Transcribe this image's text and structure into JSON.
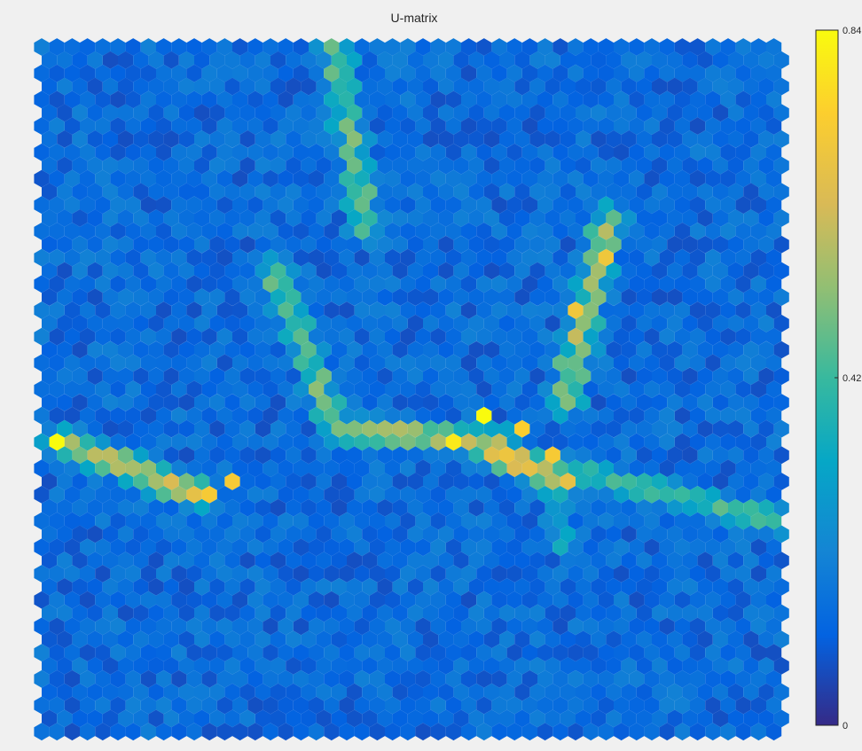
{
  "chart_data": {
    "type": "heatmap",
    "subtype": "hexagonal-som-u-matrix",
    "title": "U-matrix",
    "grid": {
      "cols": 49,
      "rows": 53
    },
    "value_range": [
      0,
      0.84
    ],
    "colorbar": {
      "orientation": "vertical",
      "placement": "right",
      "colormap": "parula",
      "ticks": [
        "0",
        "0.42",
        "0.84"
      ],
      "tick_values": [
        0,
        0.42,
        0.84
      ]
    },
    "high_ridges": [
      {
        "from": [
          19,
          0
        ],
        "to": [
          21,
          14
        ],
        "peak": 0.5
      },
      {
        "from": [
          15,
          17
        ],
        "to": [
          19,
          29
        ],
        "peak": 0.5
      },
      {
        "from": [
          1,
          30
        ],
        "to": [
          10,
          34
        ],
        "peak": 0.68
      },
      {
        "from": [
          19,
          29
        ],
        "to": [
          30,
          30
        ],
        "peak": 0.6
      },
      {
        "from": [
          28,
          30
        ],
        "to": [
          34,
          33
        ],
        "peak": 0.72
      },
      {
        "from": [
          37,
          13
        ],
        "to": [
          34,
          27
        ],
        "peak": 0.58
      },
      {
        "from": [
          34,
          32
        ],
        "to": [
          48,
          36
        ],
        "peak": 0.46
      },
      {
        "from": [
          33,
          33
        ],
        "to": [
          34,
          38
        ],
        "peak": 0.34
      }
    ],
    "peaks": [
      {
        "col": 1,
        "row": 30,
        "value": 0.84
      },
      {
        "col": 29,
        "row": 28,
        "value": 0.84
      },
      {
        "col": 27,
        "row": 30,
        "value": 0.8
      },
      {
        "col": 12,
        "row": 33,
        "value": 0.72
      },
      {
        "col": 11,
        "row": 34,
        "value": 0.72
      },
      {
        "col": 37,
        "row": 16,
        "value": 0.7
      },
      {
        "col": 35,
        "row": 20,
        "value": 0.7
      },
      {
        "col": 31,
        "row": 29,
        "value": 0.74
      },
      {
        "col": 33,
        "row": 31,
        "value": 0.72
      }
    ],
    "colors": {
      "low": "#352a87",
      "mid": "#0fa1b5",
      "high": "#f9fb0e"
    }
  }
}
